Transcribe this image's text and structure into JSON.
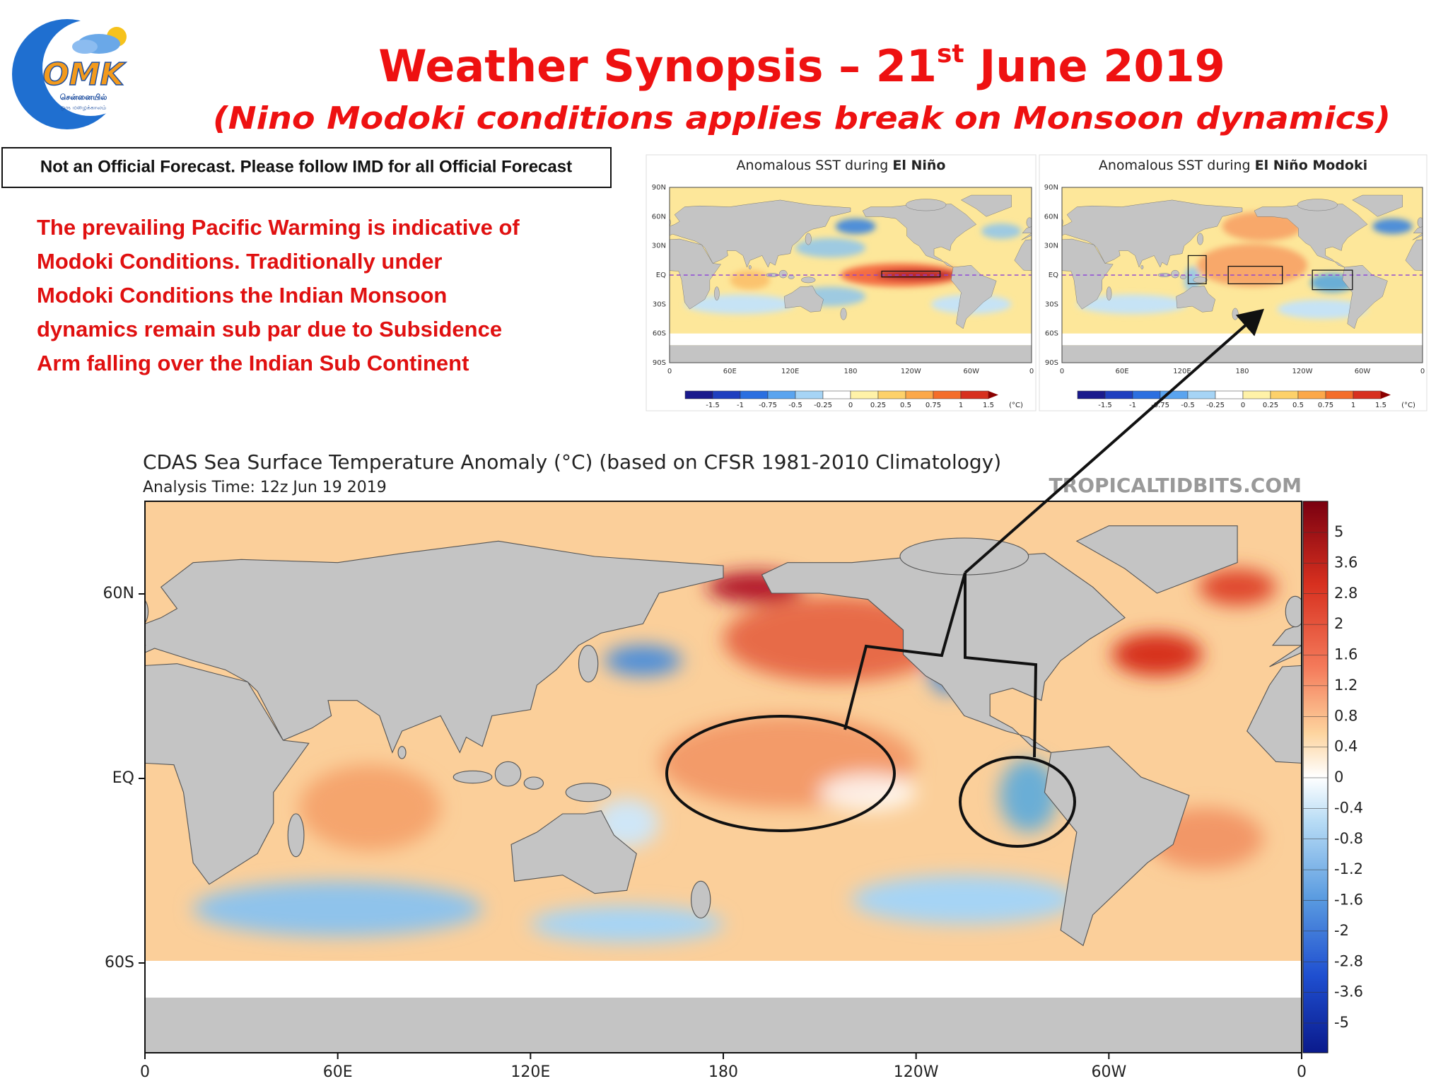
{
  "logo": {
    "text": "OMK",
    "line1": "சென்னையில்",
    "line2": "ஒரு மழைக்காலம்"
  },
  "header": {
    "title_parts": [
      "Weather Synopsis – 21",
      "st",
      " June 2019"
    ],
    "subtitle": "(Nino Modoki conditions applies break on Monsoon dynamics)"
  },
  "disclaimer": "Not an Official Forecast. Please follow IMD for all Official Forecast",
  "description": [
    "The prevailing Pacific Warming is indicative of",
    "Modoki Conditions.  Traditionally under",
    "Modoki Conditions the Indian Monsoon",
    "dynamics  remain sub par due to Subsidence",
    "Arm falling over the Indian Sub Continent"
  ],
  "small_maps": [
    {
      "title": "Anomalous SST during ",
      "title_bold": "El Niño",
      "lat_labels": [
        "90N",
        "60N",
        "30N",
        "EQ",
        "30S",
        "60S",
        "90S"
      ],
      "lon_labels": [
        "0",
        "60E",
        "120E",
        "180",
        "120W",
        "60W",
        "0"
      ],
      "colorbar_labels": [
        "-1.5",
        "-1",
        "-0.75",
        "-0.5",
        "-0.25",
        "0",
        "0.25",
        "0.5",
        "0.75",
        "1",
        "1.5",
        "(°C)"
      ]
    },
    {
      "title": "Anomalous SST during ",
      "title_bold": "El Niño Modoki",
      "lat_labels": [
        "90N",
        "60N",
        "30N",
        "EQ",
        "30S",
        "60S",
        "90S"
      ],
      "lon_labels": [
        "0",
        "60E",
        "120E",
        "180",
        "120W",
        "60W",
        "0"
      ],
      "colorbar_labels": [
        "-1.5",
        "-1",
        "-0.75",
        "-0.5",
        "-0.25",
        "0",
        "0.25",
        "0.5",
        "0.75",
        "1",
        "1.5",
        "(°C)"
      ]
    }
  ],
  "main_map": {
    "title": "CDAS Sea Surface Temperature Anomaly (°C) (based on CFSR 1981-2010 Climatology)",
    "analysis_time": "Analysis Time: 12z Jun 19 2019",
    "watermark": "TROPICALTIDBITS.COM",
    "lat_labels": [
      "60N",
      "EQ",
      "60S"
    ],
    "lon_labels": [
      "0",
      "60E",
      "120E",
      "180",
      "120W",
      "60W",
      "0"
    ],
    "colorbar_labels": [
      "5",
      "3.6",
      "2.8",
      "2",
      "1.6",
      "1.2",
      "0.8",
      "0.4",
      "0",
      "-0.4",
      "-0.8",
      "-1.2",
      "-1.6",
      "-2",
      "-2.8",
      "-3.6",
      "-5"
    ]
  }
}
